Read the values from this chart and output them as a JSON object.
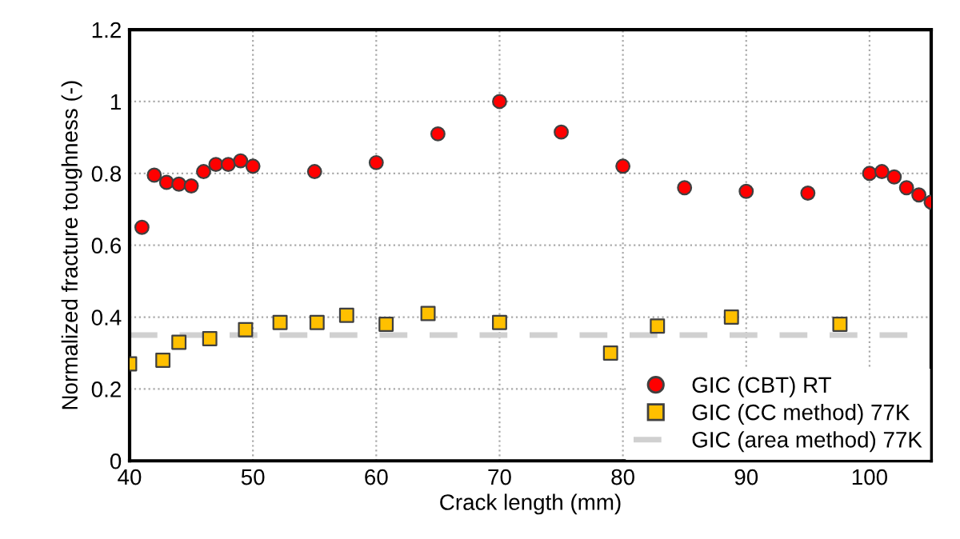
{
  "chart_data": {
    "type": "scatter",
    "xlabel": "Crack length (mm)",
    "ylabel": "Normalized fracture toughness (-)",
    "xlim": [
      40,
      105
    ],
    "xticks": [
      40,
      50,
      60,
      70,
      80,
      90,
      100
    ],
    "ylim": [
      0,
      1.2
    ],
    "yticks": [
      0,
      0.2,
      0.4,
      0.6,
      0.8,
      1,
      1.2
    ],
    "grid": true,
    "legend": "bottom right",
    "series": [
      {
        "name": "GIC (CBT) RT",
        "color": "#ff0000",
        "marker": "circle",
        "x": [
          41,
          42,
          43,
          44,
          45,
          46,
          47,
          48,
          49,
          50,
          55,
          60,
          65,
          70,
          75,
          80,
          85,
          90,
          95,
          100,
          101,
          102,
          103,
          104,
          105
        ],
        "values": [
          0.65,
          0.795,
          0.775,
          0.77,
          0.765,
          0.805,
          0.825,
          0.825,
          0.835,
          0.82,
          0.805,
          0.83,
          0.91,
          1.0,
          0.915,
          0.82,
          0.76,
          0.75,
          0.745,
          0.8,
          0.805,
          0.79,
          0.76,
          0.74,
          0.72
        ]
      },
      {
        "name": "GIC (CC method) 77K",
        "color": "#ffc000",
        "marker": "square",
        "x": [
          40,
          42.7,
          44,
          46.5,
          49.4,
          52.2,
          55.2,
          57.6,
          60.8,
          64.2,
          70,
          79,
          82.8,
          88.8,
          97.6
        ],
        "values": [
          0.27,
          0.28,
          0.33,
          0.34,
          0.365,
          0.385,
          0.385,
          0.405,
          0.38,
          0.41,
          0.385,
          0.3,
          0.375,
          0.4,
          0.38
        ]
      }
    ],
    "ref_lines": [
      {
        "axis": "y",
        "value": 0.35,
        "label": "GIC (area method) 77K",
        "color": "#d0d0d0",
        "line_style": "dashed"
      }
    ]
  }
}
